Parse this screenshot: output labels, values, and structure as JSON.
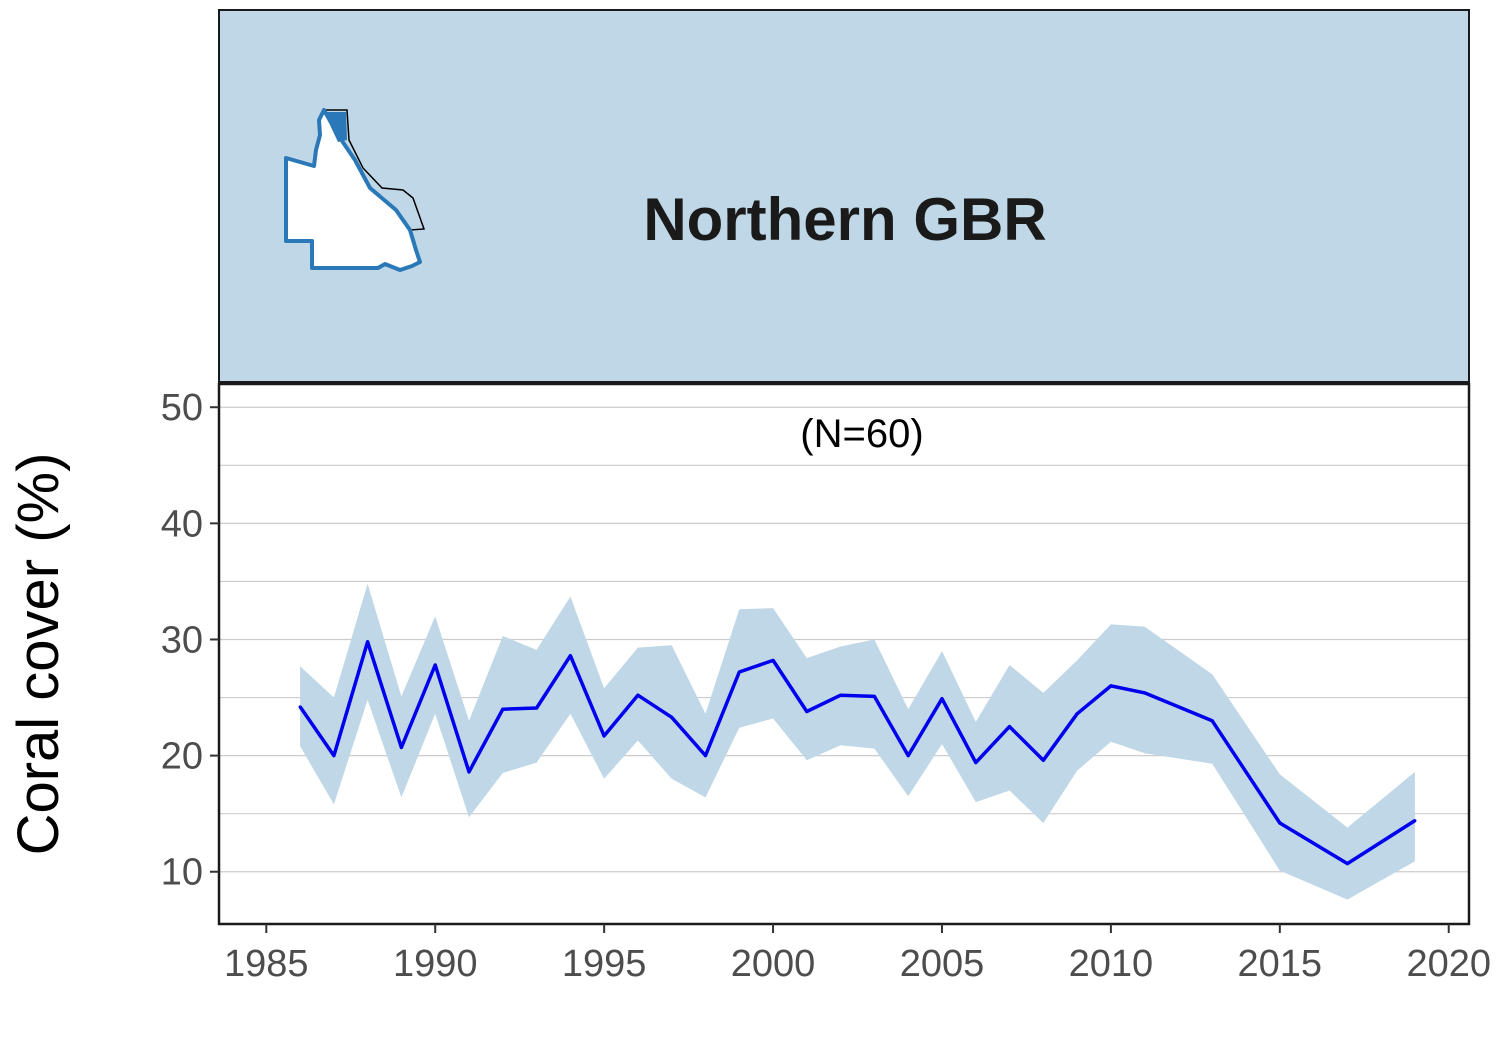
{
  "chart_data": {
    "type": "line",
    "title": "Northern GBR",
    "annotation": "(N=60)",
    "xlabel": "",
    "ylabel": "Coral cover (%)",
    "xlim": [
      1983.6,
      2020.6
    ],
    "ylim": [
      5.5,
      52
    ],
    "xticks": [
      1985,
      1990,
      1995,
      2000,
      2005,
      2010,
      2015,
      2020
    ],
    "yticks": [
      10,
      20,
      30,
      40,
      50
    ],
    "grid": "horizontal",
    "colors": {
      "line": "#0000ee",
      "band": "#bfd7e6",
      "strip": "#bfd7e6",
      "map_outline": "#2a78b8",
      "map_highlight": "#2a78b8"
    },
    "series": [
      {
        "x": [
          1986,
          1987,
          1988,
          1989,
          1990,
          1991,
          1992,
          1993,
          1994,
          1995,
          1996,
          1997,
          1998,
          1999,
          2000,
          2001,
          2002,
          2003,
          2004,
          2005,
          2006,
          2007,
          2008,
          2009,
          2010,
          2011,
          2013,
          2015,
          2017,
          2019
        ],
        "values": [
          24.2,
          20.0,
          29.8,
          20.7,
          27.8,
          18.6,
          24.0,
          24.1,
          28.6,
          21.7,
          25.2,
          23.3,
          20.0,
          27.2,
          28.2,
          23.8,
          25.2,
          25.1,
          20.0,
          24.9,
          19.4,
          22.5,
          19.6,
          23.6,
          26.0,
          25.4,
          23.0,
          14.2,
          10.7,
          14.4
        ],
        "lower": [
          20.8,
          15.8,
          24.8,
          16.4,
          23.6,
          14.7,
          18.5,
          19.4,
          23.6,
          18.0,
          21.3,
          18.0,
          16.4,
          22.4,
          23.2,
          19.6,
          20.9,
          20.6,
          16.5,
          21.0,
          16.0,
          17.0,
          14.2,
          18.7,
          21.2,
          20.2,
          19.3,
          10.1,
          7.6,
          10.9
        ],
        "upper": [
          27.7,
          25.0,
          34.8,
          25.1,
          32.0,
          23.0,
          30.3,
          29.1,
          33.7,
          25.8,
          29.3,
          29.5,
          23.6,
          32.6,
          32.7,
          28.4,
          29.4,
          30.0,
          24.0,
          29.0,
          22.9,
          27.8,
          25.4,
          28.2,
          31.3,
          31.1,
          27.0,
          18.4,
          13.8,
          18.6
        ]
      }
    ]
  }
}
